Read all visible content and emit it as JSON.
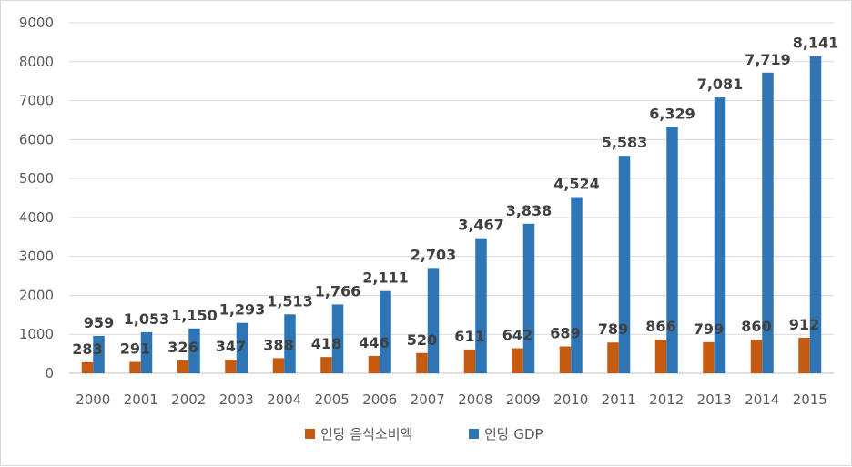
{
  "chart_data": {
    "type": "bar",
    "categories": [
      "2000",
      "2001",
      "2002",
      "2003",
      "2004",
      "2005",
      "2006",
      "2007",
      "2008",
      "2009",
      "2010",
      "2011",
      "2012",
      "2013",
      "2014",
      "2015"
    ],
    "series": [
      {
        "name": "인당 음식소비액",
        "color": "#c55a11",
        "values": [
          283,
          291,
          326,
          347,
          388,
          418,
          446,
          520,
          611,
          642,
          689,
          789,
          866,
          799,
          860,
          912
        ],
        "labels": [
          "283",
          "291",
          "326",
          "347",
          "388",
          "418",
          "446",
          "520",
          "611",
          "642",
          "689",
          "789",
          "866",
          "799",
          "860",
          "912"
        ]
      },
      {
        "name": "인당 GDP",
        "color": "#2e75b6",
        "values": [
          959,
          1053,
          1150,
          1293,
          1513,
          1766,
          2111,
          2703,
          3467,
          3838,
          4524,
          5583,
          6329,
          7081,
          7719,
          8141
        ],
        "labels": [
          "959",
          "1,053",
          "1,150",
          "1,293",
          "1,513",
          "1,766",
          "2,111",
          "2,703",
          "3,467",
          "3,838",
          "4,524",
          "5,583",
          "6,329",
          "7,081",
          "7,719",
          "8,141"
        ]
      }
    ],
    "ylim": [
      0,
      9000
    ],
    "yticks": [
      "0",
      "1000",
      "2000",
      "3000",
      "4000",
      "5000",
      "6000",
      "7000",
      "8000",
      "9000"
    ],
    "grid": true,
    "legend": "bottom-center",
    "title": "",
    "xlabel": "",
    "ylabel": ""
  }
}
